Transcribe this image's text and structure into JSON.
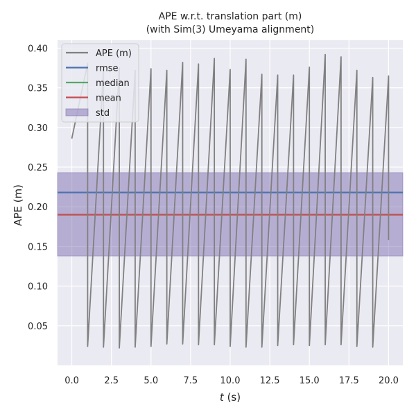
{
  "chart_data": {
    "type": "line",
    "title": "APE w.r.t. translation part (m)",
    "subtitle": "(with Sim(3) Umeyama alignment)",
    "xlabel_italic": "t",
    "xlabel_unit": " (s)",
    "ylabel": "APE (m)",
    "xlim": [
      -0.9,
      20.9
    ],
    "ylim": [
      0.0,
      0.41
    ],
    "x_ticks": [
      0,
      2.5,
      5,
      7.5,
      10,
      12.5,
      15,
      17.5,
      20
    ],
    "x_tick_labels": [
      "0.0",
      "2.5",
      "5.0",
      "7.5",
      "10.0",
      "12.5",
      "15.0",
      "17.5",
      "20.0"
    ],
    "y_ticks": [
      0.05,
      0.1,
      0.15,
      0.2,
      0.25,
      0.3,
      0.35,
      0.4
    ],
    "y_tick_labels": [
      "0.05",
      "0.10",
      "0.15",
      "0.20",
      "0.25",
      "0.30",
      "0.35",
      "0.40"
    ],
    "grid": true,
    "legend_position": "top-left",
    "legend": [
      "APE (m)",
      "rmse",
      "median",
      "mean",
      "std"
    ],
    "colors": {
      "ape": "#808080",
      "rmse": "#4c72b0",
      "median": "#55a868",
      "mean": "#c44e52",
      "std": "#8172b2",
      "background": "#eaeaf2",
      "grid": "#ffffff"
    },
    "stats": {
      "rmse": 0.218,
      "median": 0.19,
      "mean": 0.19,
      "std_low": 0.138,
      "std_high": 0.243
    },
    "series": [
      {
        "name": "APE (m)",
        "x": [
          0.0,
          1.0,
          1.0,
          2.0,
          2.0,
          3.0,
          3.0,
          4.0,
          4.0,
          5.0,
          5.0,
          6.0,
          6.0,
          7.0,
          7.0,
          8.0,
          8.0,
          9.0,
          9.0,
          10.0,
          10.0,
          11.0,
          11.0,
          12.0,
          12.0,
          13.0,
          13.0,
          14.0,
          14.0,
          15.0,
          15.0,
          16.0,
          16.0,
          17.0,
          17.0,
          18.0,
          18.0,
          19.0,
          19.0,
          20.0,
          20.0
        ],
        "y": [
          0.286,
          0.381,
          0.024,
          0.373,
          0.023,
          0.375,
          0.022,
          0.372,
          0.023,
          0.374,
          0.024,
          0.372,
          0.027,
          0.382,
          0.027,
          0.38,
          0.026,
          0.387,
          0.026,
          0.373,
          0.024,
          0.386,
          0.023,
          0.367,
          0.023,
          0.366,
          0.025,
          0.366,
          0.026,
          0.376,
          0.025,
          0.392,
          0.026,
          0.389,
          0.026,
          0.372,
          0.024,
          0.363,
          0.023,
          0.365,
          0.158
        ]
      }
    ]
  }
}
